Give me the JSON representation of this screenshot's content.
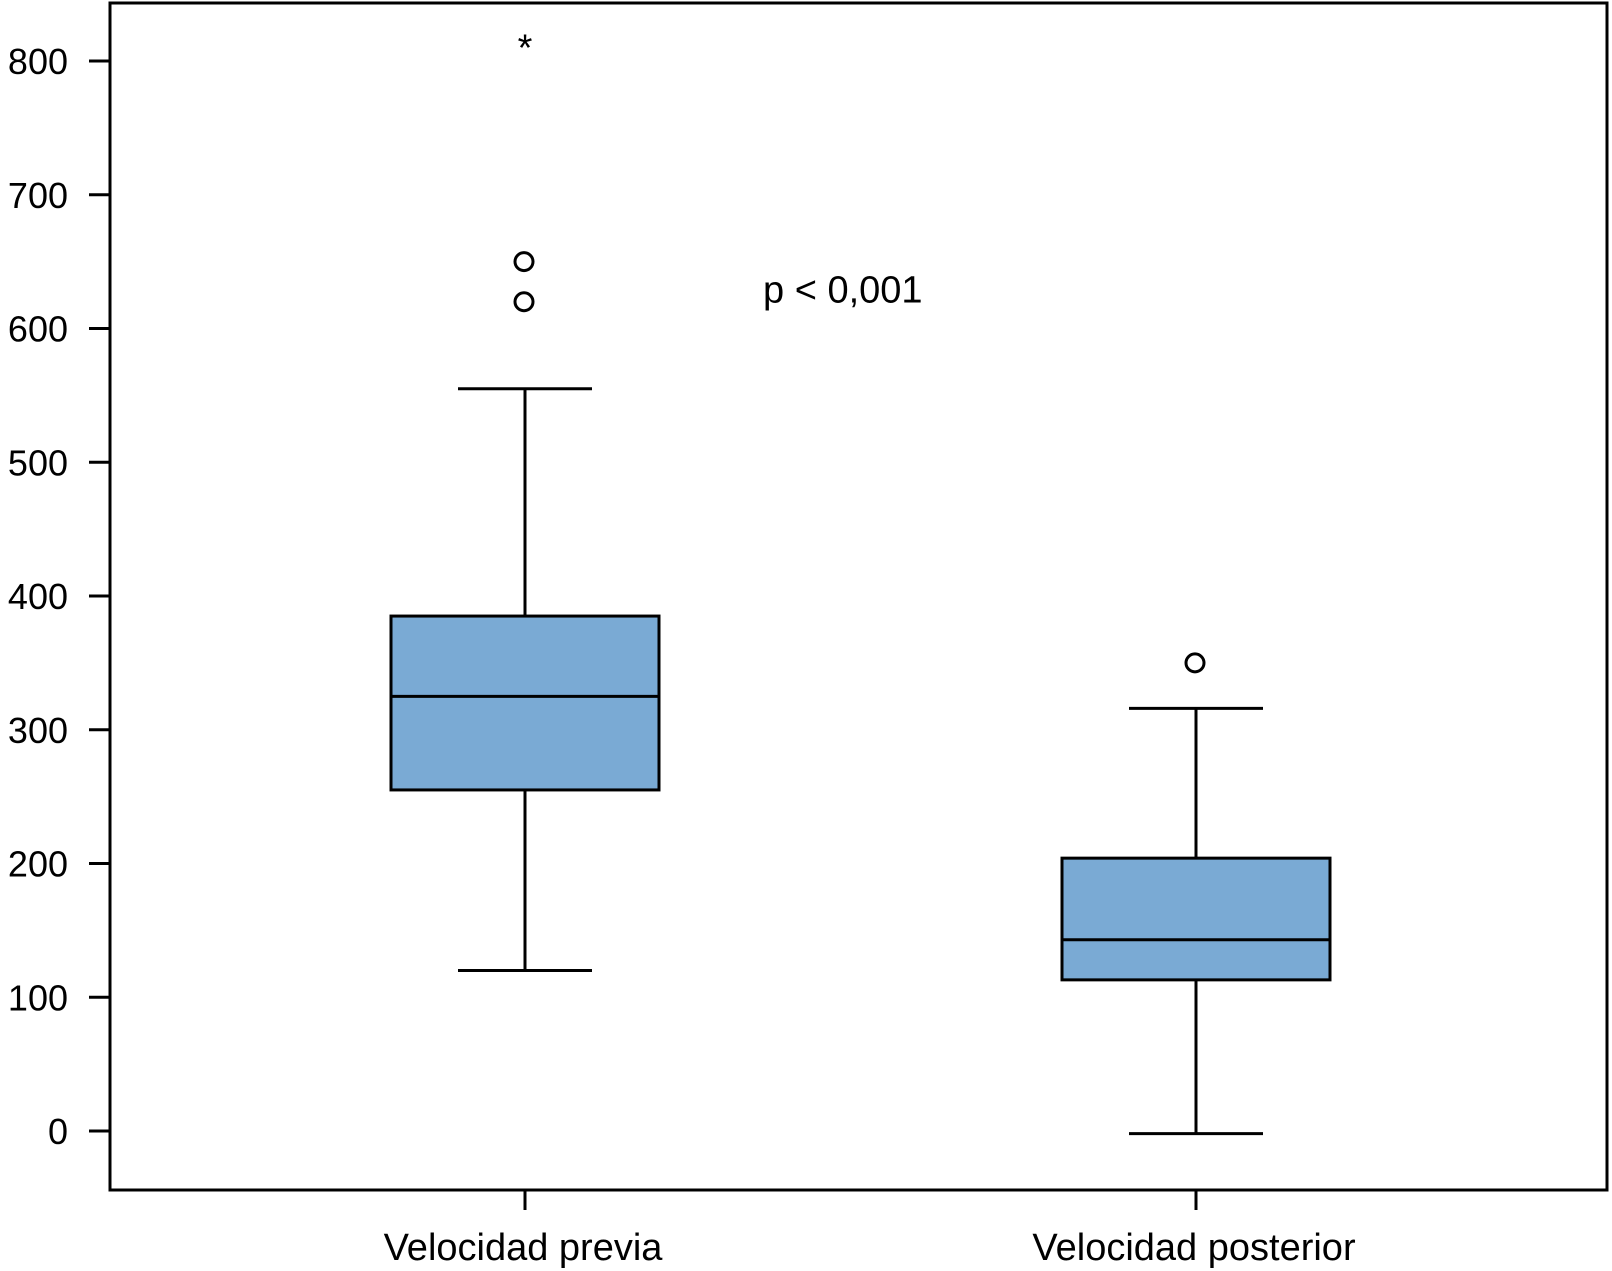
{
  "chart_data": {
    "type": "boxplot",
    "title": "",
    "xlabel": "",
    "ylabel": "",
    "ylim": [
      -45,
      820
    ],
    "yticks": [
      0,
      100,
      200,
      300,
      400,
      500,
      600,
      700,
      800
    ],
    "categories": [
      "Velocidad previa",
      "Velocidad posterior"
    ],
    "boxes": [
      {
        "category": "Velocidad previa",
        "whisker_low": 120,
        "q1": 255,
        "median": 325,
        "q3": 385,
        "whisker_high": 555,
        "outliers": [
          620,
          650
        ],
        "extremes": [
          817
        ]
      },
      {
        "category": "Velocidad posterior",
        "whisker_low": -2,
        "q1": 113,
        "median": 143,
        "q3": 204,
        "whisker_high": 316,
        "outliers": [
          350
        ],
        "extremes": []
      }
    ],
    "annotation": "p < 0,001",
    "annotation_position": [
      240,
      630
    ],
    "box_color": "#7aaad4",
    "line_color": "#000000"
  }
}
